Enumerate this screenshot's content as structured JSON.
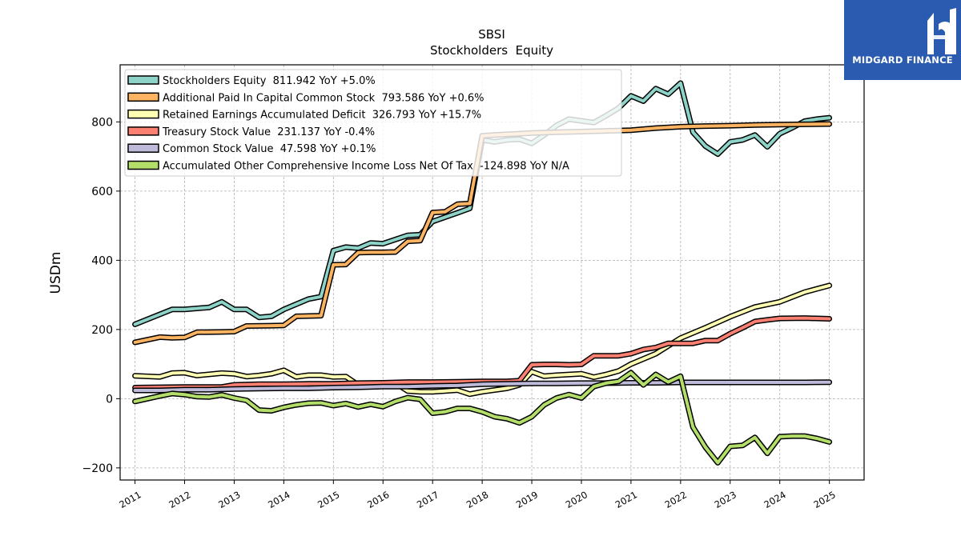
{
  "chart_data": {
    "type": "line",
    "title": "SBSI",
    "subtitle": "Stockholders  Equity",
    "xlabel": "",
    "ylabel": "USDm",
    "ylim": [
      -235,
      965
    ],
    "y_ticks": [
      -200,
      0,
      200,
      400,
      600,
      800
    ],
    "y_tick_labels": [
      "−200",
      "0",
      "200",
      "400",
      "600",
      "800"
    ],
    "x_ticks": [
      "2011",
      "2012",
      "2013",
      "2014",
      "2015",
      "2016",
      "2017",
      "2018",
      "2019",
      "2020",
      "2021",
      "2022",
      "2023",
      "2024",
      "2025"
    ],
    "grid": true,
    "legend_position": "top-left",
    "series": [
      {
        "name": "Stockholders Equity  811.942 YoY +5.0%",
        "color": "#8dd3c7",
        "points": [
          [
            2011.0,
            215
          ],
          [
            2011.75,
            258
          ],
          [
            2012.0,
            258
          ],
          [
            2012.5,
            264
          ],
          [
            2012.75,
            280
          ],
          [
            2013.0,
            258
          ],
          [
            2013.25,
            258
          ],
          [
            2013.5,
            235
          ],
          [
            2013.75,
            238
          ],
          [
            2014.0,
            258
          ],
          [
            2014.5,
            288
          ],
          [
            2014.75,
            295
          ],
          [
            2015.0,
            428
          ],
          [
            2015.25,
            438
          ],
          [
            2015.5,
            435
          ],
          [
            2015.75,
            450
          ],
          [
            2016.0,
            448
          ],
          [
            2016.5,
            472
          ],
          [
            2016.75,
            474
          ],
          [
            2017.0,
            512
          ],
          [
            2017.5,
            537
          ],
          [
            2017.75,
            550
          ],
          [
            2018.0,
            748
          ],
          [
            2018.25,
            742
          ],
          [
            2018.5,
            748
          ],
          [
            2018.75,
            750
          ],
          [
            2019.0,
            738
          ],
          [
            2019.25,
            762
          ],
          [
            2019.5,
            790
          ],
          [
            2019.75,
            808
          ],
          [
            2020.0,
            803
          ],
          [
            2020.25,
            798
          ],
          [
            2020.5,
            818
          ],
          [
            2020.75,
            840
          ],
          [
            2021.0,
            875
          ],
          [
            2021.25,
            860
          ],
          [
            2021.5,
            896
          ],
          [
            2021.75,
            880
          ],
          [
            2022.0,
            912
          ],
          [
            2022.25,
            770
          ],
          [
            2022.5,
            730
          ],
          [
            2022.75,
            707
          ],
          [
            2023.0,
            742
          ],
          [
            2023.25,
            748
          ],
          [
            2023.5,
            762
          ],
          [
            2023.75,
            728
          ],
          [
            2024.0,
            766
          ],
          [
            2024.25,
            783
          ],
          [
            2024.5,
            802
          ],
          [
            2024.75,
            808
          ],
          [
            2025.0,
            812
          ]
        ]
      },
      {
        "name": "Additional Paid In Capital Common Stock  793.586 YoY +0.6%",
        "color": "#fdb462",
        "points": [
          [
            2011.0,
            163
          ],
          [
            2011.5,
            178
          ],
          [
            2011.75,
            176
          ],
          [
            2012.0,
            177
          ],
          [
            2012.25,
            192
          ],
          [
            2012.75,
            193
          ],
          [
            2013.0,
            194
          ],
          [
            2013.25,
            210
          ],
          [
            2013.75,
            211
          ],
          [
            2014.0,
            212
          ],
          [
            2014.25,
            238
          ],
          [
            2014.75,
            240
          ],
          [
            2015.0,
            387
          ],
          [
            2015.25,
            388
          ],
          [
            2015.5,
            422
          ],
          [
            2015.75,
            423
          ],
          [
            2016.0,
            423
          ],
          [
            2016.25,
            424
          ],
          [
            2016.5,
            455
          ],
          [
            2016.75,
            457
          ],
          [
            2017.0,
            538
          ],
          [
            2017.25,
            540
          ],
          [
            2017.5,
            562
          ],
          [
            2017.75,
            564
          ],
          [
            2018.0,
            760
          ],
          [
            2018.25,
            762
          ],
          [
            2018.5,
            764
          ],
          [
            2018.75,
            766
          ],
          [
            2019.0,
            768
          ],
          [
            2019.5,
            770
          ],
          [
            2020.0,
            772
          ],
          [
            2020.5,
            774
          ],
          [
            2021.0,
            776
          ],
          [
            2021.5,
            782
          ],
          [
            2022.0,
            786
          ],
          [
            2022.5,
            788
          ],
          [
            2023.0,
            789
          ],
          [
            2023.5,
            791
          ],
          [
            2024.0,
            792
          ],
          [
            2024.5,
            793
          ],
          [
            2025.0,
            794
          ]
        ]
      },
      {
        "name": "Retained Earnings Accumulated Deficit  326.793 YoY +15.7%",
        "color": "#ffffb3",
        "points": [
          [
            2011.0,
            66
          ],
          [
            2011.5,
            63
          ],
          [
            2011.75,
            74
          ],
          [
            2012.0,
            75
          ],
          [
            2012.25,
            67
          ],
          [
            2012.75,
            74
          ],
          [
            2013.0,
            72
          ],
          [
            2013.25,
            64
          ],
          [
            2013.5,
            67
          ],
          [
            2013.75,
            72
          ],
          [
            2014.0,
            82
          ],
          [
            2014.25,
            63
          ],
          [
            2014.5,
            68
          ],
          [
            2014.75,
            68
          ],
          [
            2015.0,
            63
          ],
          [
            2015.25,
            64
          ],
          [
            2015.5,
            40
          ],
          [
            2015.75,
            38
          ],
          [
            2016.0,
            38
          ],
          [
            2016.25,
            45
          ],
          [
            2016.5,
            22
          ],
          [
            2016.75,
            20
          ],
          [
            2017.0,
            20
          ],
          [
            2017.25,
            22
          ],
          [
            2017.5,
            25
          ],
          [
            2017.75,
            13
          ],
          [
            2018.0,
            20
          ],
          [
            2018.5,
            30
          ],
          [
            2018.75,
            40
          ],
          [
            2019.0,
            78
          ],
          [
            2019.25,
            65
          ],
          [
            2019.5,
            68
          ],
          [
            2019.75,
            70
          ],
          [
            2020.0,
            72
          ],
          [
            2020.25,
            62
          ],
          [
            2020.5,
            70
          ],
          [
            2020.75,
            80
          ],
          [
            2021.0,
            100
          ],
          [
            2021.5,
            130
          ],
          [
            2022.0,
            175
          ],
          [
            2022.5,
            205
          ],
          [
            2023.0,
            237
          ],
          [
            2023.5,
            265
          ],
          [
            2024.0,
            280
          ],
          [
            2024.5,
            308
          ],
          [
            2025.0,
            327
          ]
        ]
      },
      {
        "name": "Treasury Stock Value  231.137 YoY -0.4%",
        "color": "#fb8072",
        "points": [
          [
            2011.0,
            32
          ],
          [
            2011.5,
            33
          ],
          [
            2012.0,
            34
          ],
          [
            2012.5,
            34
          ],
          [
            2012.75,
            34
          ],
          [
            2013.0,
            40
          ],
          [
            2013.5,
            42
          ],
          [
            2014.0,
            42
          ],
          [
            2014.5,
            43
          ],
          [
            2015.0,
            43
          ],
          [
            2015.5,
            45
          ],
          [
            2016.0,
            46
          ],
          [
            2016.5,
            48
          ],
          [
            2017.0,
            48
          ],
          [
            2017.5,
            49
          ],
          [
            2018.0,
            50
          ],
          [
            2018.5,
            50
          ],
          [
            2018.75,
            52
          ],
          [
            2019.0,
            98
          ],
          [
            2019.25,
            99
          ],
          [
            2019.5,
            99
          ],
          [
            2019.75,
            98
          ],
          [
            2020.0,
            99
          ],
          [
            2020.25,
            124
          ],
          [
            2020.5,
            124
          ],
          [
            2020.75,
            124
          ],
          [
            2021.0,
            130
          ],
          [
            2021.25,
            142
          ],
          [
            2021.5,
            148
          ],
          [
            2021.75,
            160
          ],
          [
            2022.0,
            160
          ],
          [
            2022.25,
            160
          ],
          [
            2022.5,
            168
          ],
          [
            2022.75,
            168
          ],
          [
            2023.0,
            188
          ],
          [
            2023.25,
            205
          ],
          [
            2023.5,
            223
          ],
          [
            2023.75,
            228
          ],
          [
            2024.0,
            232
          ],
          [
            2024.5,
            233
          ],
          [
            2025.0,
            231
          ]
        ]
      },
      {
        "name": "Common Stock Value  47.598 YoY +0.1%",
        "color": "#bebada",
        "points": [
          [
            2011.0,
            24
          ],
          [
            2011.5,
            24
          ],
          [
            2012.0,
            26
          ],
          [
            2012.5,
            26
          ],
          [
            2013.0,
            28
          ],
          [
            2013.5,
            29
          ],
          [
            2014.0,
            30
          ],
          [
            2014.5,
            30
          ],
          [
            2015.0,
            32
          ],
          [
            2015.5,
            33
          ],
          [
            2016.0,
            35
          ],
          [
            2016.5,
            35
          ],
          [
            2017.0,
            37
          ],
          [
            2017.5,
            38
          ],
          [
            2018.0,
            42
          ],
          [
            2018.5,
            43
          ],
          [
            2019.0,
            44
          ],
          [
            2019.5,
            44
          ],
          [
            2020.0,
            45
          ],
          [
            2020.5,
            45
          ],
          [
            2021.0,
            46
          ],
          [
            2021.5,
            46
          ],
          [
            2022.0,
            47
          ],
          [
            2022.5,
            47
          ],
          [
            2023.0,
            47
          ],
          [
            2023.5,
            47
          ],
          [
            2024.0,
            47
          ],
          [
            2024.5,
            47
          ],
          [
            2025.0,
            47.6
          ]
        ]
      },
      {
        "name": "Accumulated Other Comprehensive Income Loss Net Of Tax  -124.898 YoY N/A",
        "color": "#b3de69",
        "points": [
          [
            2011.0,
            -8
          ],
          [
            2011.5,
            8
          ],
          [
            2011.75,
            15
          ],
          [
            2012.0,
            12
          ],
          [
            2012.25,
            6
          ],
          [
            2012.5,
            5
          ],
          [
            2012.75,
            11
          ],
          [
            2013.0,
            2
          ],
          [
            2013.25,
            -5
          ],
          [
            2013.5,
            -33
          ],
          [
            2013.75,
            -35
          ],
          [
            2014.0,
            -25
          ],
          [
            2014.25,
            -18
          ],
          [
            2014.5,
            -13
          ],
          [
            2014.75,
            -12
          ],
          [
            2015.0,
            -20
          ],
          [
            2015.25,
            -14
          ],
          [
            2015.5,
            -24
          ],
          [
            2015.75,
            -16
          ],
          [
            2016.0,
            -23
          ],
          [
            2016.25,
            -8
          ],
          [
            2016.5,
            3
          ],
          [
            2016.75,
            -2
          ],
          [
            2017.0,
            -42
          ],
          [
            2017.25,
            -38
          ],
          [
            2017.5,
            -28
          ],
          [
            2017.75,
            -28
          ],
          [
            2018.0,
            -38
          ],
          [
            2018.25,
            -52
          ],
          [
            2018.5,
            -58
          ],
          [
            2018.75,
            -70
          ],
          [
            2019.0,
            -52
          ],
          [
            2019.25,
            -18
          ],
          [
            2019.5,
            2
          ],
          [
            2019.75,
            12
          ],
          [
            2020.0,
            2
          ],
          [
            2020.25,
            35
          ],
          [
            2020.5,
            45
          ],
          [
            2020.75,
            50
          ],
          [
            2021.0,
            75
          ],
          [
            2021.25,
            40
          ],
          [
            2021.5,
            70
          ],
          [
            2021.75,
            48
          ],
          [
            2022.0,
            65
          ],
          [
            2022.25,
            -82
          ],
          [
            2022.5,
            -140
          ],
          [
            2022.75,
            -185
          ],
          [
            2023.0,
            -138
          ],
          [
            2023.25,
            -135
          ],
          [
            2023.5,
            -112
          ],
          [
            2023.75,
            -158
          ],
          [
            2024.0,
            -110
          ],
          [
            2024.25,
            -108
          ],
          [
            2024.5,
            -108
          ],
          [
            2024.75,
            -115
          ],
          [
            2025.0,
            -125
          ]
        ]
      }
    ]
  },
  "logo": {
    "text": "MIDGARD FINANCE"
  }
}
